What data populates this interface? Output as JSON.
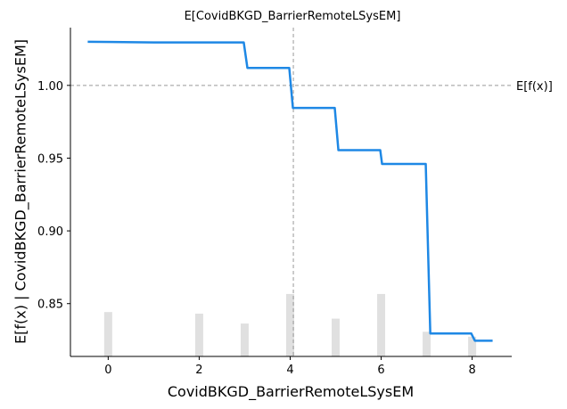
{
  "chart_data": {
    "type": "line",
    "title": "E[CovidBKGD_BarrierRemoteLSysEM]",
    "xlabel": "CovidBKGD_BarrierRemoteLSysEM",
    "ylabel": "E[f(x) | CovidBKGD_BarrierRemoteLSysEM]",
    "xlim": [
      -0.83,
      8.87
    ],
    "ylim": [
      0.8137,
      1.0397
    ],
    "xticks": [
      0,
      2,
      4,
      6,
      8
    ],
    "yticks": [
      0.85,
      0.9,
      0.95,
      1.0
    ],
    "xtick_labels": [
      "0",
      "2",
      "4",
      "6",
      "8"
    ],
    "ytick_labels": [
      "0.85",
      "0.90",
      "0.95",
      "1.00"
    ],
    "series": [
      {
        "x": [
          -0.45,
          1.0,
          2.98,
          3.06,
          3.98,
          4.06,
          4.98,
          5.06,
          5.98,
          6.02,
          6.98,
          7.08,
          7.98,
          8.06,
          8.45
        ],
        "y": [
          1.03,
          1.0295,
          1.0295,
          1.012,
          1.012,
          0.9845,
          0.9845,
          0.9555,
          0.9555,
          0.946,
          0.946,
          0.8295,
          0.8295,
          0.8245,
          0.8245
        ]
      }
    ],
    "histogram": {
      "x": [
        0,
        2,
        3,
        4,
        5,
        6,
        7,
        8
      ],
      "height_fraction": [
        0.135,
        0.13,
        0.1,
        0.19,
        0.115,
        0.19,
        0.075,
        0.06
      ]
    },
    "reference_lines": {
      "expected_value": 1.0,
      "expected_value_label": "E[f(x)]",
      "expected_x": 4.07
    },
    "colors": {
      "line": "#1e88e5",
      "histogram": "#e0e0e0",
      "reference": "#999999"
    }
  }
}
